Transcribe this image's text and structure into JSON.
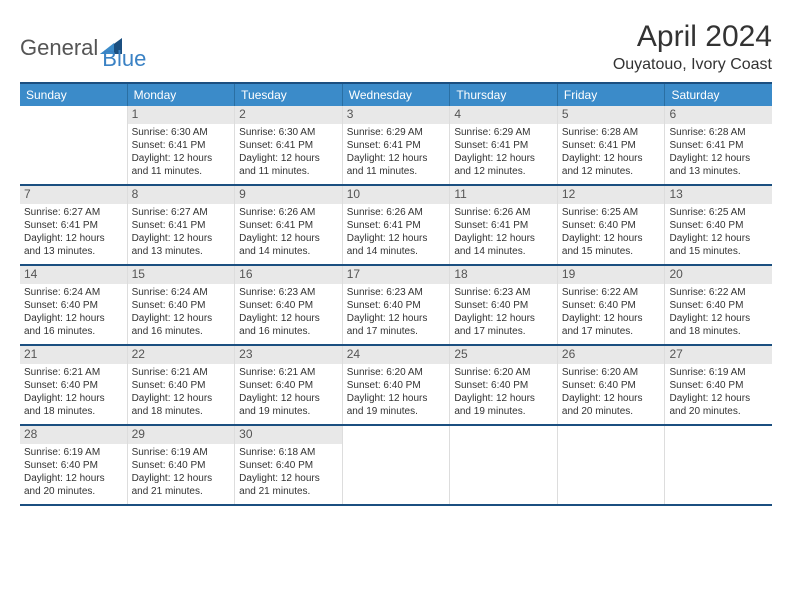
{
  "logo": {
    "part1": "General",
    "part2": "Blue"
  },
  "title": "April 2024",
  "location": "Ouyatouo, Ivory Coast",
  "colors": {
    "header_bg": "#3b8bc9",
    "header_border": "#1b4f80",
    "daynum_bg": "#e8e8e8",
    "text": "#333333",
    "logo_accent": "#3b82c4"
  },
  "weekdays": [
    "Sunday",
    "Monday",
    "Tuesday",
    "Wednesday",
    "Thursday",
    "Friday",
    "Saturday"
  ],
  "weeks": [
    [
      {
        "n": "",
        "sunrise": "",
        "sunset": "",
        "daylight1": "",
        "daylight2": ""
      },
      {
        "n": "1",
        "sunrise": "Sunrise: 6:30 AM",
        "sunset": "Sunset: 6:41 PM",
        "daylight1": "Daylight: 12 hours",
        "daylight2": "and 11 minutes."
      },
      {
        "n": "2",
        "sunrise": "Sunrise: 6:30 AM",
        "sunset": "Sunset: 6:41 PM",
        "daylight1": "Daylight: 12 hours",
        "daylight2": "and 11 minutes."
      },
      {
        "n": "3",
        "sunrise": "Sunrise: 6:29 AM",
        "sunset": "Sunset: 6:41 PM",
        "daylight1": "Daylight: 12 hours",
        "daylight2": "and 11 minutes."
      },
      {
        "n": "4",
        "sunrise": "Sunrise: 6:29 AM",
        "sunset": "Sunset: 6:41 PM",
        "daylight1": "Daylight: 12 hours",
        "daylight2": "and 12 minutes."
      },
      {
        "n": "5",
        "sunrise": "Sunrise: 6:28 AM",
        "sunset": "Sunset: 6:41 PM",
        "daylight1": "Daylight: 12 hours",
        "daylight2": "and 12 minutes."
      },
      {
        "n": "6",
        "sunrise": "Sunrise: 6:28 AM",
        "sunset": "Sunset: 6:41 PM",
        "daylight1": "Daylight: 12 hours",
        "daylight2": "and 13 minutes."
      }
    ],
    [
      {
        "n": "7",
        "sunrise": "Sunrise: 6:27 AM",
        "sunset": "Sunset: 6:41 PM",
        "daylight1": "Daylight: 12 hours",
        "daylight2": "and 13 minutes."
      },
      {
        "n": "8",
        "sunrise": "Sunrise: 6:27 AM",
        "sunset": "Sunset: 6:41 PM",
        "daylight1": "Daylight: 12 hours",
        "daylight2": "and 13 minutes."
      },
      {
        "n": "9",
        "sunrise": "Sunrise: 6:26 AM",
        "sunset": "Sunset: 6:41 PM",
        "daylight1": "Daylight: 12 hours",
        "daylight2": "and 14 minutes."
      },
      {
        "n": "10",
        "sunrise": "Sunrise: 6:26 AM",
        "sunset": "Sunset: 6:41 PM",
        "daylight1": "Daylight: 12 hours",
        "daylight2": "and 14 minutes."
      },
      {
        "n": "11",
        "sunrise": "Sunrise: 6:26 AM",
        "sunset": "Sunset: 6:41 PM",
        "daylight1": "Daylight: 12 hours",
        "daylight2": "and 14 minutes."
      },
      {
        "n": "12",
        "sunrise": "Sunrise: 6:25 AM",
        "sunset": "Sunset: 6:40 PM",
        "daylight1": "Daylight: 12 hours",
        "daylight2": "and 15 minutes."
      },
      {
        "n": "13",
        "sunrise": "Sunrise: 6:25 AM",
        "sunset": "Sunset: 6:40 PM",
        "daylight1": "Daylight: 12 hours",
        "daylight2": "and 15 minutes."
      }
    ],
    [
      {
        "n": "14",
        "sunrise": "Sunrise: 6:24 AM",
        "sunset": "Sunset: 6:40 PM",
        "daylight1": "Daylight: 12 hours",
        "daylight2": "and 16 minutes."
      },
      {
        "n": "15",
        "sunrise": "Sunrise: 6:24 AM",
        "sunset": "Sunset: 6:40 PM",
        "daylight1": "Daylight: 12 hours",
        "daylight2": "and 16 minutes."
      },
      {
        "n": "16",
        "sunrise": "Sunrise: 6:23 AM",
        "sunset": "Sunset: 6:40 PM",
        "daylight1": "Daylight: 12 hours",
        "daylight2": "and 16 minutes."
      },
      {
        "n": "17",
        "sunrise": "Sunrise: 6:23 AM",
        "sunset": "Sunset: 6:40 PM",
        "daylight1": "Daylight: 12 hours",
        "daylight2": "and 17 minutes."
      },
      {
        "n": "18",
        "sunrise": "Sunrise: 6:23 AM",
        "sunset": "Sunset: 6:40 PM",
        "daylight1": "Daylight: 12 hours",
        "daylight2": "and 17 minutes."
      },
      {
        "n": "19",
        "sunrise": "Sunrise: 6:22 AM",
        "sunset": "Sunset: 6:40 PM",
        "daylight1": "Daylight: 12 hours",
        "daylight2": "and 17 minutes."
      },
      {
        "n": "20",
        "sunrise": "Sunrise: 6:22 AM",
        "sunset": "Sunset: 6:40 PM",
        "daylight1": "Daylight: 12 hours",
        "daylight2": "and 18 minutes."
      }
    ],
    [
      {
        "n": "21",
        "sunrise": "Sunrise: 6:21 AM",
        "sunset": "Sunset: 6:40 PM",
        "daylight1": "Daylight: 12 hours",
        "daylight2": "and 18 minutes."
      },
      {
        "n": "22",
        "sunrise": "Sunrise: 6:21 AM",
        "sunset": "Sunset: 6:40 PM",
        "daylight1": "Daylight: 12 hours",
        "daylight2": "and 18 minutes."
      },
      {
        "n": "23",
        "sunrise": "Sunrise: 6:21 AM",
        "sunset": "Sunset: 6:40 PM",
        "daylight1": "Daylight: 12 hours",
        "daylight2": "and 19 minutes."
      },
      {
        "n": "24",
        "sunrise": "Sunrise: 6:20 AM",
        "sunset": "Sunset: 6:40 PM",
        "daylight1": "Daylight: 12 hours",
        "daylight2": "and 19 minutes."
      },
      {
        "n": "25",
        "sunrise": "Sunrise: 6:20 AM",
        "sunset": "Sunset: 6:40 PM",
        "daylight1": "Daylight: 12 hours",
        "daylight2": "and 19 minutes."
      },
      {
        "n": "26",
        "sunrise": "Sunrise: 6:20 AM",
        "sunset": "Sunset: 6:40 PM",
        "daylight1": "Daylight: 12 hours",
        "daylight2": "and 20 minutes."
      },
      {
        "n": "27",
        "sunrise": "Sunrise: 6:19 AM",
        "sunset": "Sunset: 6:40 PM",
        "daylight1": "Daylight: 12 hours",
        "daylight2": "and 20 minutes."
      }
    ],
    [
      {
        "n": "28",
        "sunrise": "Sunrise: 6:19 AM",
        "sunset": "Sunset: 6:40 PM",
        "daylight1": "Daylight: 12 hours",
        "daylight2": "and 20 minutes."
      },
      {
        "n": "29",
        "sunrise": "Sunrise: 6:19 AM",
        "sunset": "Sunset: 6:40 PM",
        "daylight1": "Daylight: 12 hours",
        "daylight2": "and 21 minutes."
      },
      {
        "n": "30",
        "sunrise": "Sunrise: 6:18 AM",
        "sunset": "Sunset: 6:40 PM",
        "daylight1": "Daylight: 12 hours",
        "daylight2": "and 21 minutes."
      },
      {
        "n": "",
        "sunrise": "",
        "sunset": "",
        "daylight1": "",
        "daylight2": ""
      },
      {
        "n": "",
        "sunrise": "",
        "sunset": "",
        "daylight1": "",
        "daylight2": ""
      },
      {
        "n": "",
        "sunrise": "",
        "sunset": "",
        "daylight1": "",
        "daylight2": ""
      },
      {
        "n": "",
        "sunrise": "",
        "sunset": "",
        "daylight1": "",
        "daylight2": ""
      }
    ]
  ]
}
